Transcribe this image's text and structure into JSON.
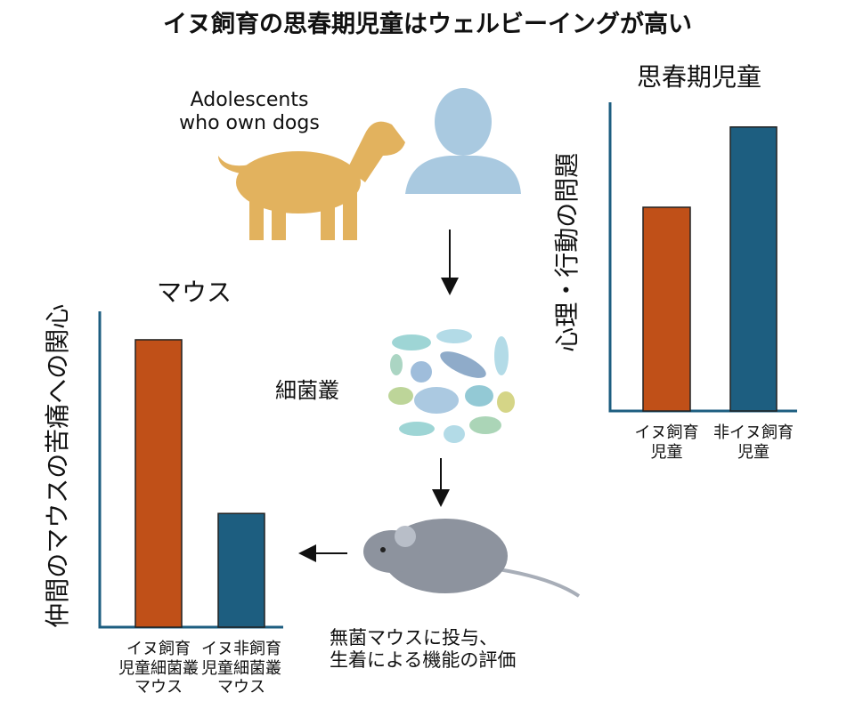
{
  "title": "イヌ飼育の思春期児童はウェルビーイングが高い",
  "labels": {
    "dog_owners": "Adolescents\nwho own dogs",
    "microbiota": "細菌叢",
    "mouse_test": "無菌マウスに投与、\n生着による機能の評価"
  },
  "chart_data": [
    {
      "type": "bar",
      "title": "思春期児童",
      "y_label": "心理・行動の問題",
      "categories": [
        "イヌ飼育\n児童",
        "非イヌ飼育\n児童"
      ],
      "values": [
        66,
        92
      ],
      "colors": [
        "#c05018",
        "#1d5e80"
      ],
      "ylim": [
        0,
        100
      ]
    },
    {
      "type": "bar",
      "title": "マウス",
      "y_label": "仲間のマウスの苦痛への関心",
      "categories": [
        "イヌ飼育\n児童細菌叢\nマウス",
        "イヌ非飼育\n児童細菌叢\nマウス"
      ],
      "values": [
        91,
        36
      ],
      "colors": [
        "#c05018",
        "#1d5e80"
      ],
      "ylim": [
        0,
        100
      ]
    }
  ]
}
